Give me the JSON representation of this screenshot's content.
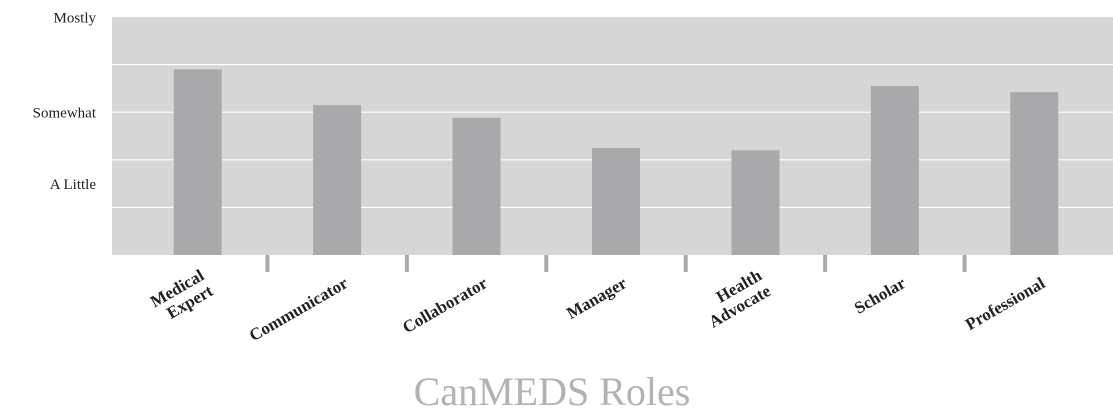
{
  "chart_data": {
    "type": "bar",
    "x_label": "CanMEDS Roles",
    "categories": [
      [
        "Medical",
        "Expert"
      ],
      [
        "Communicator"
      ],
      [
        "Collaborator"
      ],
      [
        "Manager"
      ],
      [
        "Health",
        "Advocate"
      ],
      [
        "Scholar"
      ],
      [
        "Professional"
      ]
    ],
    "values": [
      3.9,
      3.15,
      2.88,
      2.25,
      2.2,
      3.55,
      3.42
    ],
    "color": "#a9a9ab",
    "background": "#d6d6d7",
    "ylim": [
      0,
      5
    ],
    "yticks": [
      {
        "value": 1.5,
        "label": "A Little"
      },
      {
        "value": 3,
        "label": "Somewhat"
      },
      {
        "value": 5,
        "label": "Mostly"
      }
    ],
    "grid_lines": [
      1,
      2,
      3,
      4
    ],
    "grid": true
  }
}
